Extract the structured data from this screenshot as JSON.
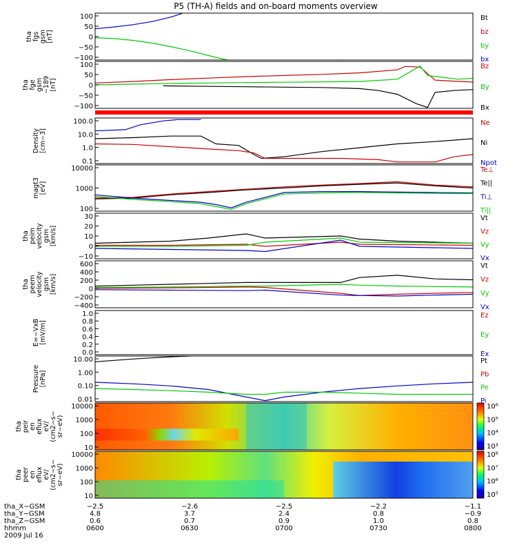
{
  "title": "P5 (TH-A) fields and on-board moments overview",
  "chart_data": [
    {
      "type": "line",
      "ylabel": [
        "tha",
        "fgs",
        "gsm",
        "[nT]"
      ],
      "yticks": [
        "100",
        "50",
        "0",
        "−50",
        "−100"
      ],
      "ylim": [
        -100,
        110
      ],
      "legend": [
        {
          "name": "Bt",
          "color": "#000000"
        },
        {
          "name": "bz",
          "color": "#cc0000"
        },
        {
          "name": "by",
          "color": "#00cc00"
        },
        {
          "name": "bx",
          "color": "#0000cc"
        }
      ],
      "series": [
        {
          "name": "bx",
          "color": "#0000cc",
          "x": [
            0,
            0.05,
            0.1,
            0.15,
            0.2,
            0.23
          ],
          "values": [
            40,
            48,
            58,
            72,
            92,
            108
          ]
        },
        {
          "name": "by",
          "color": "#00cc00",
          "x": [
            0,
            0.05,
            0.1,
            0.15,
            0.2,
            0.25,
            0.3,
            0.35
          ],
          "values": [
            0,
            -4,
            -12,
            -24,
            -40,
            -58,
            -80,
            -100
          ]
        }
      ]
    },
    {
      "type": "line",
      "ylabel": [
        "tha",
        "fge",
        "gsm",
        "−189",
        "[nT]"
      ],
      "yticks": [
        "100",
        "50",
        "0",
        "−50",
        "−100"
      ],
      "ylim": [
        -125,
        125
      ],
      "legend": [
        {
          "name": "Bz",
          "color": "#cc0000"
        },
        {
          "name": "By",
          "color": "#00cc00"
        },
        {
          "name": "Bx",
          "color": "#000000"
        }
      ],
      "series": [
        {
          "name": "Bz",
          "color": "#cc0000",
          "x": [
            0,
            0.1,
            0.2,
            0.3,
            0.4,
            0.5,
            0.6,
            0.7,
            0.8,
            0.82,
            0.86,
            0.9,
            0.95,
            1
          ],
          "values": [
            10,
            18,
            28,
            36,
            44,
            50,
            56,
            64,
            80,
            98,
            95,
            25,
            20,
            15
          ]
        },
        {
          "name": "By",
          "color": "#00cc00",
          "x": [
            0,
            0.1,
            0.2,
            0.3,
            0.4,
            0.5,
            0.6,
            0.7,
            0.8,
            0.86,
            0.88,
            0.92,
            0.96,
            1
          ],
          "values": [
            0,
            4,
            8,
            10,
            12,
            14,
            16,
            18,
            30,
            100,
            50,
            40,
            30,
            35
          ]
        },
        {
          "name": "Bx",
          "color": "#000000",
          "x": [
            0.18,
            0.3,
            0.4,
            0.5,
            0.6,
            0.7,
            0.75,
            0.8,
            0.85,
            0.88,
            0.9,
            0.95,
            1
          ],
          "values": [
            -5,
            -8,
            -10,
            -12,
            -14,
            -20,
            -30,
            -50,
            -100,
            -120,
            -40,
            -30,
            -25
          ]
        }
      ]
    },
    {
      "type": "line",
      "ylabel": [
        "Density",
        "[cm−3]"
      ],
      "yticks": [
        "100.0",
        "10.0",
        "1.0",
        "0.1"
      ],
      "log": true,
      "ylim": [
        0.06,
        200
      ],
      "legend": [
        {
          "name": "Ne",
          "color": "#cc0000"
        },
        {
          "name": "Ni",
          "color": "#000000"
        },
        {
          "name": "Npot",
          "color": "#0000cc"
        }
      ],
      "series": [
        {
          "name": "Ni",
          "color": "#000000",
          "x": [
            0,
            0.1,
            0.2,
            0.28,
            0.32,
            0.38,
            0.42,
            0.44,
            0.5,
            0.6,
            0.7,
            0.8,
            0.9,
            1
          ],
          "values": [
            5,
            6,
            8,
            8,
            2,
            1.5,
            0.3,
            0.15,
            0.2,
            0.5,
            1,
            2,
            3,
            5
          ]
        },
        {
          "name": "Ne",
          "color": "#cc0000",
          "x": [
            0,
            0.1,
            0.2,
            0.3,
            0.38,
            0.42,
            0.45,
            0.55,
            0.65,
            0.75,
            0.8,
            0.9,
            0.95,
            1
          ],
          "values": [
            2,
            1.8,
            1.2,
            0.8,
            0.6,
            0.4,
            0.15,
            0.15,
            0.15,
            0.12,
            0.08,
            0.08,
            0.2,
            0.3
          ]
        },
        {
          "name": "Npot",
          "color": "#0000cc",
          "x": [
            0,
            0.08,
            0.12,
            0.18,
            0.22,
            0.28
          ],
          "values": [
            20,
            25,
            60,
            120,
            150,
            150
          ]
        }
      ]
    },
    {
      "type": "line",
      "ylabel": [
        "magt3",
        "[eV]"
      ],
      "yticks": [
        "10000",
        "1000",
        "100"
      ],
      "log": true,
      "ylim": [
        40,
        12000
      ],
      "legend": [
        {
          "name": "Te⊥",
          "color": "#cc0000"
        },
        {
          "name": "Te||",
          "color": "#000000"
        },
        {
          "name": "Ti⊥",
          "color": "#0000cc"
        },
        {
          "name": "Ti||",
          "color": "#00cc00"
        }
      ],
      "series": [
        {
          "name": "Te||",
          "color": "#000000",
          "x": [
            0,
            0.1,
            0.2,
            0.3,
            0.4,
            0.5,
            0.6,
            0.7,
            0.8,
            0.9,
            1
          ],
          "values": [
            180,
            200,
            300,
            400,
            550,
            700,
            900,
            1100,
            1300,
            900,
            700
          ]
        },
        {
          "name": "Te⊥",
          "color": "#cc0000",
          "x": [
            0,
            0.1,
            0.2,
            0.3,
            0.4,
            0.5,
            0.6,
            0.7,
            0.8,
            0.9,
            1
          ],
          "values": [
            200,
            220,
            330,
            450,
            600,
            800,
            1000,
            1200,
            1500,
            1000,
            800
          ]
        },
        {
          "name": "Ti⊥",
          "color": "#0000cc",
          "x": [
            0,
            0.1,
            0.2,
            0.28,
            0.32,
            0.36,
            0.4,
            0.5,
            0.6,
            0.7,
            0.8,
            0.9,
            1
          ],
          "values": [
            300,
            200,
            150,
            120,
            90,
            60,
            120,
            400,
            450,
            450,
            420,
            400,
            380
          ]
        },
        {
          "name": "Ti||",
          "color": "#00cc00",
          "x": [
            0,
            0.1,
            0.2,
            0.28,
            0.32,
            0.36,
            0.4,
            0.5,
            0.6,
            0.7,
            0.8,
            0.9,
            1
          ],
          "values": [
            250,
            170,
            130,
            100,
            70,
            50,
            100,
            330,
            380,
            400,
            380,
            360,
            350
          ]
        }
      ]
    },
    {
      "type": "line",
      "ylabel": [
        "tha",
        "peim",
        "velocity",
        "gsm",
        "[km/s]"
      ],
      "yticks": [
        "30",
        "20",
        "10",
        "0",
        "−10"
      ],
      "ylim": [
        -12,
        32
      ],
      "legend": [
        {
          "name": "Vt",
          "color": "#000000"
        },
        {
          "name": "Vz",
          "color": "#cc0000"
        },
        {
          "name": "Vy",
          "color": "#00cc00"
        },
        {
          "name": "Vx",
          "color": "#0000cc"
        }
      ],
      "series": [
        {
          "name": "Vt",
          "color": "#000000",
          "x": [
            0,
            0.1,
            0.2,
            0.3,
            0.4,
            0.45,
            0.65,
            0.7,
            0.8,
            0.9,
            1
          ],
          "values": [
            3,
            4,
            5,
            8,
            12,
            8,
            10,
            7,
            5,
            4,
            3
          ]
        },
        {
          "name": "Vz",
          "color": "#cc0000",
          "x": [
            0,
            0.2,
            0.4,
            0.45,
            0.65,
            0.7,
            1
          ],
          "values": [
            1,
            1,
            2,
            0,
            4,
            2,
            1
          ]
        },
        {
          "name": "Vy",
          "color": "#00cc00",
          "x": [
            0,
            0.2,
            0.4,
            0.45,
            0.65,
            0.7,
            1
          ],
          "values": [
            0,
            0,
            1,
            4,
            8,
            4,
            3
          ]
        },
        {
          "name": "Vx",
          "color": "#0000cc",
          "x": [
            0,
            0.2,
            0.4,
            0.45,
            0.65,
            0.7,
            1
          ],
          "values": [
            -2,
            -3,
            -4,
            -5,
            6,
            0,
            -2
          ]
        }
      ]
    },
    {
      "type": "line",
      "ylabel": [
        "tha",
        "peem",
        "velocity",
        "gsm",
        "[km/s]"
      ],
      "yticks": [
        "600",
        "400",
        "200",
        "0",
        "−200",
        "−400"
      ],
      "ylim": [
        -420,
        620
      ],
      "legend": [
        {
          "name": "Vt",
          "color": "#000000"
        },
        {
          "name": "Vz",
          "color": "#cc0000"
        },
        {
          "name": "Vy",
          "color": "#00cc00"
        },
        {
          "name": "Vx",
          "color": "#0000cc"
        }
      ],
      "series": [
        {
          "name": "Vt",
          "color": "#000000",
          "x": [
            0,
            0.1,
            0.2,
            0.3,
            0.4,
            0.45,
            0.65,
            0.7,
            0.8,
            0.9,
            1
          ],
          "values": [
            60,
            80,
            100,
            120,
            140,
            140,
            140,
            250,
            300,
            220,
            200
          ]
        },
        {
          "name": "Vy",
          "color": "#00cc00",
          "x": [
            0,
            0.2,
            0.4,
            0.45,
            0.65,
            0.7,
            0.8,
            0.9,
            1
          ],
          "values": [
            30,
            40,
            60,
            60,
            100,
            80,
            60,
            50,
            40
          ]
        },
        {
          "name": "Vz",
          "color": "#cc0000",
          "x": [
            0,
            0.2,
            0.4,
            0.45,
            0.65,
            0.7,
            0.8,
            0.9,
            1
          ],
          "values": [
            10,
            20,
            40,
            30,
            -100,
            -150,
            -120,
            -100,
            -80
          ]
        },
        {
          "name": "Vx",
          "color": "#0000cc",
          "x": [
            0,
            0.2,
            0.4,
            0.45,
            0.65,
            0.7,
            0.8,
            0.9,
            1
          ],
          "values": [
            -20,
            -30,
            -40,
            -30,
            -140,
            -150,
            -160,
            -140,
            -120
          ]
        }
      ]
    },
    {
      "type": "line",
      "ylabel": [
        "E=−VxB",
        "[mV/m]"
      ],
      "yticks": [
        "1.0",
        "0.8",
        "0.6",
        "0.4",
        "0.2",
        "0.0"
      ],
      "ylim": [
        0,
        1
      ],
      "legend": [
        {
          "name": "Ez",
          "color": "#cc0000"
        },
        {
          "name": "Ey",
          "color": "#00cc00"
        },
        {
          "name": "Ex",
          "color": "#0000cc"
        }
      ],
      "series": []
    },
    {
      "type": "line",
      "ylabel": [
        "Pressure",
        "[nPa]"
      ],
      "yticks": [
        "10.00",
        "1.00",
        "0.10",
        "0.01"
      ],
      "log": true,
      "ylim": [
        0.005,
        30
      ],
      "legend": [
        {
          "name": "Pt",
          "color": "#000000"
        },
        {
          "name": "Pb",
          "color": "#cc0000"
        },
        {
          "name": "Pe",
          "color": "#00cc00"
        },
        {
          "name": "Pi",
          "color": "#0000cc"
        }
      ],
      "series": [
        {
          "name": "Pt",
          "color": "#000000",
          "x": [
            0,
            0.05,
            0.1,
            0.15,
            0.2,
            0.25
          ],
          "values": [
            10,
            13,
            17,
            21,
            26,
            30
          ]
        },
        {
          "name": "Pi",
          "color": "#0000cc",
          "x": [
            0,
            0.1,
            0.2,
            0.3,
            0.4,
            0.45,
            0.5,
            0.6,
            0.7,
            0.8,
            0.9,
            1
          ],
          "values": [
            0.2,
            0.15,
            0.1,
            0.05,
            0.012,
            0.006,
            0.012,
            0.03,
            0.06,
            0.1,
            0.15,
            0.2
          ]
        },
        {
          "name": "Pe",
          "color": "#00cc00",
          "x": [
            0,
            0.1,
            0.2,
            0.3,
            0.4,
            0.45,
            0.5,
            0.6,
            0.7,
            0.8,
            0.9,
            1
          ],
          "values": [
            0.06,
            0.05,
            0.04,
            0.03,
            0.02,
            0.02,
            0.03,
            0.03,
            0.025,
            0.02,
            0.02,
            0.02
          ]
        }
      ]
    },
    {
      "type": "heatmap",
      "ylabel": [
        "tha",
        "peir",
        "en",
        "eflux",
        "eV/",
        "(cm2−s−",
        "sr−eV)"
      ],
      "yticks": [
        "10000",
        "1000",
        "100",
        "10"
      ],
      "colorbar_labels": [
        "10⁶",
        "10⁵",
        "10⁴",
        "10³"
      ]
    },
    {
      "type": "heatmap",
      "ylabel": [
        "tha",
        "peer",
        "en",
        "eflux",
        "eV/",
        "(cm2−s−",
        "sr−eV)"
      ],
      "yticks": [
        "10000",
        "1000",
        "100",
        "10"
      ],
      "colorbar_labels": [
        "10⁸",
        "10⁷",
        "10⁶",
        "10⁵"
      ]
    }
  ],
  "xaxis": {
    "rows": [
      {
        "label": "tha_X−GSM",
        "values": [
          "−2.5",
          "−2.6",
          "−2.5",
          "−2.2",
          "−1.1"
        ]
      },
      {
        "label": "tha_Y−GSM",
        "values": [
          "4.8",
          "3.7",
          "2.4",
          "0.8",
          "−0.9"
        ]
      },
      {
        "label": "tha_Z−GSM",
        "values": [
          "0.6",
          "0.7",
          "0.9",
          "1.0",
          "0.8"
        ]
      },
      {
        "label": "hhmm",
        "values": [
          "0600",
          "0630",
          "0700",
          "0730",
          "0800"
        ]
      }
    ],
    "date": "2009 Jul 16"
  }
}
